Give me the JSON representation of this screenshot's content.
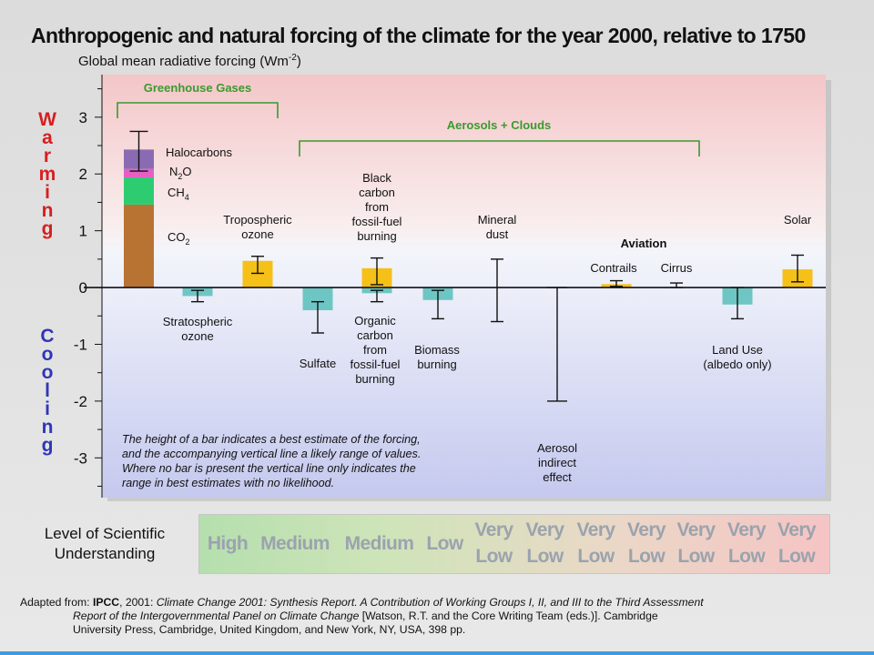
{
  "title": "Anthropogenic and natural forcing of the climate for the year 2000, relative to 1750",
  "subtitle_main": "Global mean radiative forcing (Wm",
  "subtitle_sup": "-2",
  "subtitle_end": ")",
  "side_labels": {
    "warming": [
      "W",
      "a",
      "r",
      "m",
      "i",
      "n",
      "g"
    ],
    "cooling": [
      "C",
      "o",
      "o",
      "l",
      "i",
      "n",
      "g"
    ]
  },
  "colors": {
    "co2": "#b87333",
    "ch4": "#2ecc71",
    "n2o": "#e65fc4",
    "halocarbons": "#8a6bb3",
    "warm_bar": "#f5c018",
    "cool_bar": "#6ec6c4",
    "group_bracket": "#3a9a2e",
    "warming_text": "#d71e1e",
    "cooling_text": "#2f36b8"
  },
  "chart_data": {
    "type": "bar",
    "title": "Anthropogenic and natural forcing of the climate for the year 2000, relative to 1750",
    "ylabel": "Global mean radiative forcing (Wm-2)",
    "ylim": [
      -3.7,
      3.75
    ],
    "yticks": [
      3,
      2,
      1,
      0,
      -1,
      -2,
      -3
    ],
    "stacked": {
      "segments": [
        {
          "name": "CO2",
          "label": "CO",
          "sub": "2",
          "from": 0,
          "to": 1.46,
          "color_key": "co2"
        },
        {
          "name": "CH4",
          "label": "CH",
          "sub": "4",
          "from": 1.46,
          "to": 1.94,
          "color_key": "ch4"
        },
        {
          "name": "N2O",
          "label": "N",
          "sub": "2",
          "label_tail": "O",
          "from": 1.94,
          "to": 2.09,
          "color_key": "n2o"
        },
        {
          "name": "Halocarbons",
          "label": "Halocarbons",
          "sub": "",
          "from": 2.09,
          "to": 2.43,
          "color_key": "halocarbons"
        }
      ],
      "range": [
        2.05,
        2.75
      ]
    },
    "bars": [
      {
        "id": "stratospheric-ozone",
        "value": -0.15,
        "range": [
          -0.25,
          -0.05
        ],
        "color_key": "cool_bar",
        "label": [
          "Stratospheric",
          "ozone"
        ]
      },
      {
        "id": "tropospheric-ozone",
        "value": 0.47,
        "range": [
          0.25,
          0.55
        ],
        "color_key": "warm_bar",
        "label": [
          "Tropospheric",
          "ozone"
        ]
      },
      {
        "id": "sulfate",
        "value": -0.4,
        "range": [
          -0.8,
          -0.25
        ],
        "color_key": "cool_bar",
        "label": [
          "Sulfate"
        ]
      },
      {
        "id": "black-carbon",
        "value": 0.34,
        "range": [
          0.05,
          0.52
        ],
        "color_key": "warm_bar",
        "label": [
          "Black",
          "carbon",
          "from",
          "fossil-fuel",
          "burning"
        ]
      },
      {
        "id": "organic-carbon",
        "value": -0.1,
        "range": [
          -0.25,
          -0.05
        ],
        "color_key": "cool_bar",
        "label": [
          "Organic",
          "carbon",
          "from",
          "fossil-fuel",
          "burning"
        ]
      },
      {
        "id": "biomass-burning",
        "value": -0.22,
        "range": [
          -0.55,
          -0.05
        ],
        "color_key": "cool_bar",
        "label": [
          "Biomass",
          "burning"
        ]
      },
      {
        "id": "mineral-dust",
        "value": null,
        "range": [
          -0.6,
          0.5
        ],
        "color_key": "",
        "label": [
          "Mineral",
          "dust"
        ]
      },
      {
        "id": "aerosol-indirect-effect",
        "value": null,
        "range": [
          -2.0,
          0.0
        ],
        "color_key": "",
        "label": [
          "Aerosol",
          "indirect",
          "effect"
        ]
      },
      {
        "id": "contrails",
        "value": 0.06,
        "range": [
          0.02,
          0.12
        ],
        "color_key": "warm_bar",
        "label": [
          "Contrails"
        ]
      },
      {
        "id": "cirrus",
        "value": null,
        "range": [
          0.0,
          0.08
        ],
        "color_key": "",
        "label": [
          "Cirrus"
        ]
      },
      {
        "id": "land-use",
        "value": -0.3,
        "range": [
          -0.55,
          0.0
        ],
        "color_key": "cool_bar",
        "label": [
          "Land Use",
          "(albedo only)"
        ]
      },
      {
        "id": "solar",
        "value": 0.32,
        "range": [
          0.1,
          0.57
        ],
        "color_key": "warm_bar",
        "label": [
          "Solar"
        ]
      }
    ],
    "groups": [
      {
        "label": "Greenhouse Gases"
      },
      {
        "label": "Aerosols + Clouds"
      },
      {
        "label": "Aviation"
      }
    ],
    "note": [
      "The height of a bar indicates a best estimate of the forcing,",
      "and the accompanying vertical line a likely range of values.",
      "Where no bar is present the vertical line only indicates the",
      "range in best estimates with no likelihood."
    ]
  },
  "understanding": {
    "label_lines": [
      "Level of Scientific",
      "Understanding"
    ],
    "items": [
      {
        "lines": [
          "High"
        ]
      },
      {
        "lines": [
          "Medium"
        ]
      },
      {
        "lines": [
          "Medium"
        ]
      },
      {
        "lines": [
          "Low"
        ]
      },
      {
        "lines": [
          "Very",
          "Low"
        ]
      },
      {
        "lines": [
          "Very",
          "Low"
        ]
      },
      {
        "lines": [
          "Very",
          "Low"
        ]
      },
      {
        "lines": [
          "Very",
          "Low"
        ]
      },
      {
        "lines": [
          "Very",
          "Low"
        ]
      },
      {
        "lines": [
          "Very",
          "Low"
        ]
      },
      {
        "lines": [
          "Very",
          "Low"
        ]
      }
    ]
  },
  "citation": {
    "prefix": "Adapted from: ",
    "bold": "IPCC",
    "rest_line1": ", 2001:  ",
    "italic": "Climate Change 2001:  Synthesis Report.  A Contribution of Working Groups I, II, and III to the Third Assessment",
    "italic2": "Report of the Intergovernmental Panel on Climate Change",
    "tail2": " [Watson, R.T. and the Core Writing Team (eds.)].  Cambridge",
    "line3": "University Press, Cambridge, United Kingdom, and New York, NY, USA, 398 pp."
  }
}
